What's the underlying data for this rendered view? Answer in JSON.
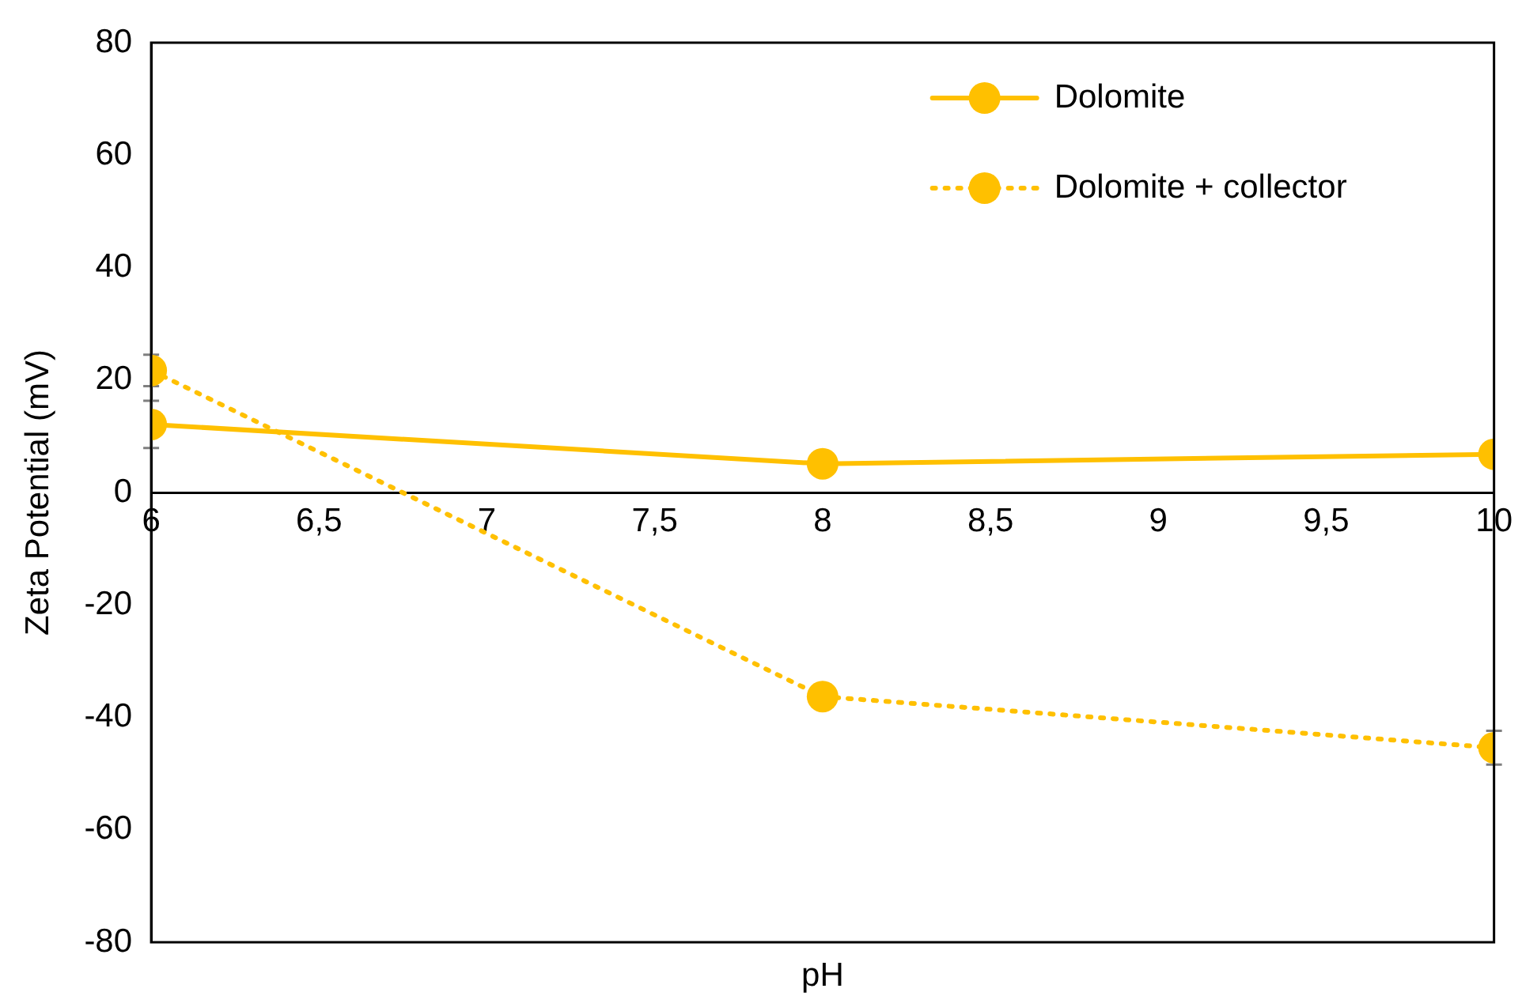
{
  "chart_data": {
    "type": "line",
    "xlabel": "pH",
    "ylabel": "Zeta Potential (mV)",
    "xlim": [
      6,
      10
    ],
    "xticks": [
      6,
      {
        "value": 6.5,
        "label": "6,5"
      },
      7,
      {
        "value": 7.5,
        "label": "7,5"
      },
      8,
      {
        "value": 8.5,
        "label": "8,5"
      },
      9,
      {
        "value": 9.5,
        "label": "9,5"
      },
      10
    ],
    "ylim": [
      -80,
      80
    ],
    "yticks": [
      -80,
      -60,
      -40,
      -20,
      0,
      20,
      40,
      60,
      80
    ],
    "x": [
      6,
      8,
      10
    ],
    "series": [
      {
        "name": "Dolomite",
        "color": "#ffc000",
        "values": [
          12.1,
          5.1,
          6.8
        ],
        "errors": [
          4.2,
          null,
          null
        ],
        "line_style": "solid"
      },
      {
        "name": "Dolomite + collector",
        "color": "#ffc000",
        "values": [
          21.7,
          -36.3,
          -45.4
        ],
        "errors": [
          2.8,
          null,
          3
        ],
        "line_style": "dotted"
      }
    ],
    "marker": "circle",
    "grid": false,
    "legend": "top right"
  }
}
